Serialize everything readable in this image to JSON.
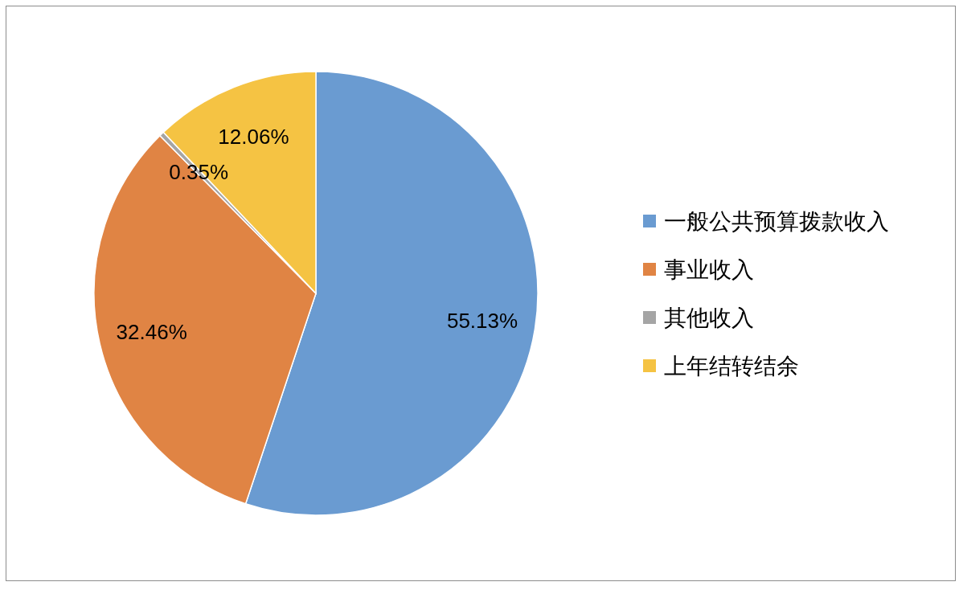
{
  "chart_data": {
    "type": "pie",
    "categories": [
      "一般公共预算拨款收入",
      "事业收入",
      "其他收入",
      "上年结转结余"
    ],
    "values": [
      55.13,
      32.46,
      0.35,
      12.06
    ],
    "colors": [
      "#6a9bd1",
      "#e08444",
      "#a5a5a5",
      "#f5c343"
    ],
    "value_labels": [
      "55.13%",
      "32.46%",
      "0.35%",
      "12.06%"
    ],
    "legend": "right"
  }
}
